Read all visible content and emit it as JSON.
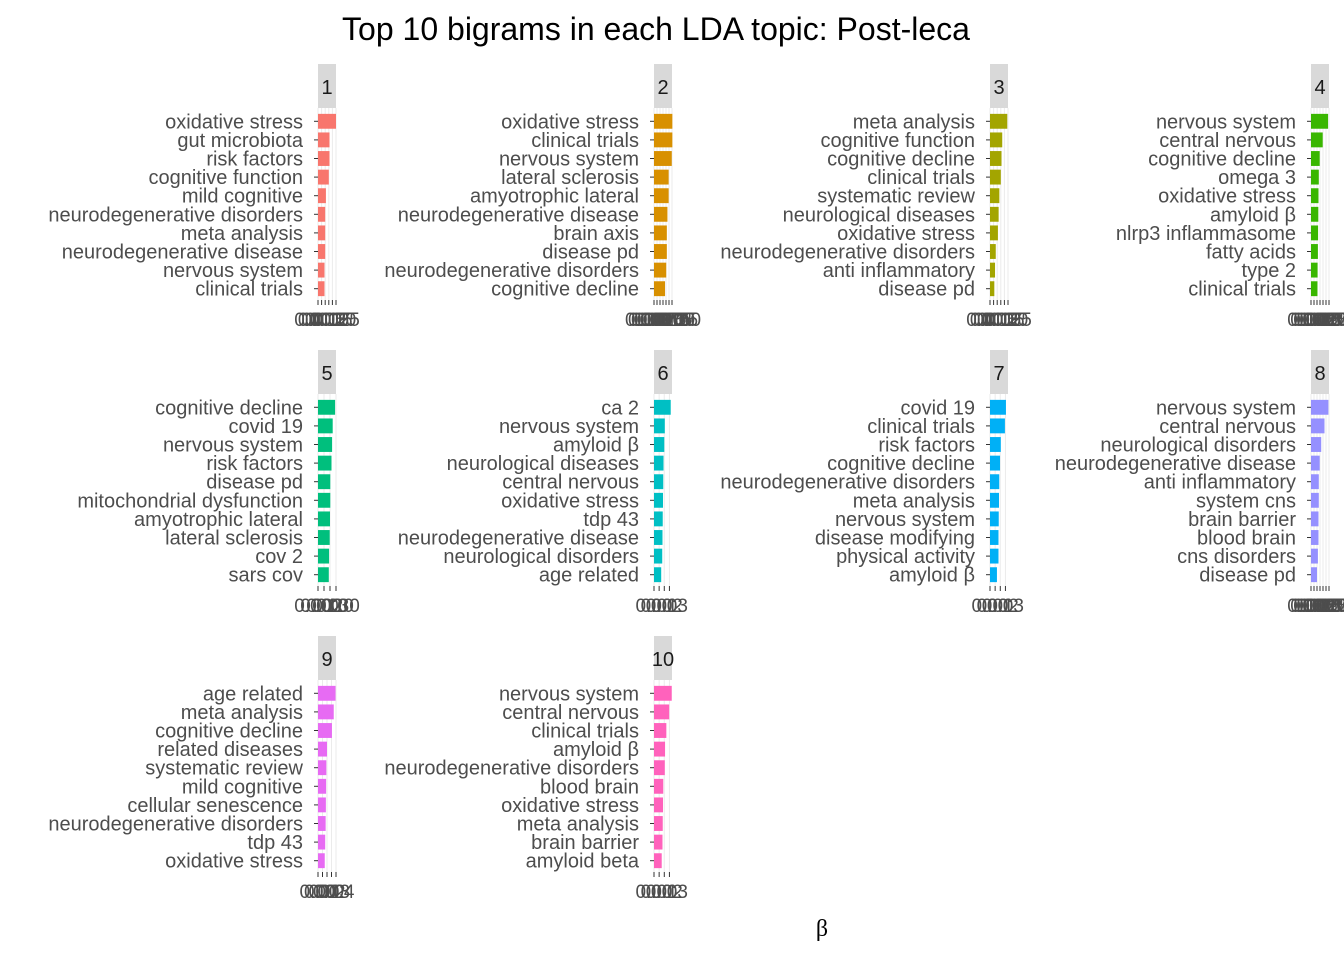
{
  "chart_data": {
    "type": "bar",
    "orientation": "horizontal",
    "title": "Top 10 bigrams in each LDA topic: Post-leca",
    "xlabel": "β",
    "ylabel": "",
    "grid": true,
    "legend": "none",
    "facets": [
      {
        "topic": "1",
        "color": "#F8766D",
        "categories": [
          "oxidative stress",
          "gut microbiota",
          "risk factors",
          "cognitive function",
          "mild cognitive",
          "neurodegenerative disorders",
          "meta analysis",
          "neurodegenerative disease",
          "nervous system",
          "clinical trials"
        ],
        "values": [
          0.025,
          0.016,
          0.016,
          0.015,
          0.011,
          0.01,
          0.01,
          0.01,
          0.009,
          0.009
        ],
        "xlim": [
          0,
          0.025
        ],
        "ticks": [
          0,
          0.005,
          0.01,
          0.015,
          0.02,
          0.025
        ],
        "tick_labels": [
          "0.000",
          "0.005",
          "0.010",
          "0.015",
          "0.020",
          "0.025"
        ]
      },
      {
        "topic": "2",
        "color": "#D89000",
        "categories": [
          "oxidative stress",
          "clinical trials",
          "nervous system",
          "lateral sclerosis",
          "amyotrophic lateral",
          "neurodegenerative disease",
          "brain axis",
          "disease pd",
          "neurodegenerative disorders",
          "cognitive decline"
        ],
        "values": [
          0.0153,
          0.0153,
          0.0148,
          0.0122,
          0.0122,
          0.0112,
          0.0107,
          0.0107,
          0.0102,
          0.0092
        ],
        "xlim": [
          0,
          0.015
        ],
        "ticks": [
          0,
          0.0025,
          0.005,
          0.0075,
          0.01,
          0.0125,
          0.015
        ],
        "tick_labels": [
          "0.0000",
          "0.0025",
          "0.0050",
          "0.0075",
          "0.0100",
          "0.0125",
          "0.0150"
        ]
      },
      {
        "topic": "3",
        "color": "#A3A500",
        "categories": [
          "meta analysis",
          "cognitive function",
          "cognitive decline",
          "clinical trials",
          "systematic review",
          "neurological diseases",
          "oxidative stress",
          "neurodegenerative disorders",
          "anti inflammatory",
          "disease pd"
        ],
        "values": [
          0.024,
          0.017,
          0.016,
          0.015,
          0.013,
          0.012,
          0.011,
          0.008,
          0.007,
          0.006
        ],
        "xlim": [
          0,
          0.025
        ],
        "ticks": [
          0,
          0.005,
          0.01,
          0.015,
          0.02,
          0.025
        ],
        "tick_labels": [
          "0.000",
          "0.005",
          "0.010",
          "0.015",
          "0.020",
          "0.025"
        ]
      },
      {
        "topic": "4",
        "color": "#39B600",
        "categories": [
          "nervous system",
          "central nervous",
          "cognitive decline",
          "omega 3",
          "oxidative stress",
          "amyloid β",
          "nlrp3 inflammasome",
          "fatty acids",
          "type 2",
          "clinical trials"
        ],
        "values": [
          0.0285,
          0.0195,
          0.0145,
          0.013,
          0.0125,
          0.0122,
          0.0118,
          0.0115,
          0.011,
          0.0108
        ],
        "xlim": [
          0,
          0.03
        ],
        "ticks": [
          0,
          0.005,
          0.01,
          0.015,
          0.02,
          0.025,
          0.03
        ],
        "tick_labels": [
          "0.000",
          "0.005",
          "0.010",
          "0.015",
          "0.020",
          "0.025",
          "0.030"
        ]
      },
      {
        "topic": "5",
        "color": "#00BF7D",
        "categories": [
          "cognitive decline",
          "covid 19",
          "nervous system",
          "risk factors",
          "disease pd",
          "mitochondrial dysfunction",
          "amyotrophic lateral",
          "lateral sclerosis",
          "cov 2",
          "sars cov"
        ],
        "values": [
          0.0285,
          0.0245,
          0.0235,
          0.0225,
          0.0205,
          0.0205,
          0.02,
          0.0195,
          0.0185,
          0.018
        ],
        "xlim": [
          0,
          0.03
        ],
        "ticks": [
          0,
          0.01,
          0.02,
          0.03
        ],
        "tick_labels": [
          "0.000",
          "0.010",
          "0.020",
          "0.030"
        ]
      },
      {
        "topic": "6",
        "color": "#00BFC4",
        "categories": [
          "ca 2",
          "nervous system",
          "amyloid β",
          "neurological diseases",
          "central nervous",
          "oxidative stress",
          "tdp 43",
          "neurodegenerative disease",
          "neurological disorders",
          "age related"
        ],
        "values": [
          0.0325,
          0.021,
          0.02,
          0.0185,
          0.018,
          0.0175,
          0.017,
          0.0165,
          0.016,
          0.014
        ],
        "xlim": [
          0,
          0.035
        ],
        "ticks": [
          0,
          0.01,
          0.02,
          0.03
        ],
        "tick_labels": [
          "0.00",
          "0.01",
          "0.02",
          "0.03"
        ]
      },
      {
        "topic": "7",
        "color": "#00B0F6",
        "categories": [
          "covid 19",
          "clinical trials",
          "risk factors",
          "cognitive decline",
          "neurodegenerative disorders",
          "meta analysis",
          "nervous system",
          "disease modifying",
          "physical activity",
          "amyloid β"
        ],
        "values": [
          0.031,
          0.029,
          0.021,
          0.0195,
          0.018,
          0.0175,
          0.017,
          0.0165,
          0.0165,
          0.0135
        ],
        "xlim": [
          0,
          0.035
        ],
        "ticks": [
          0,
          0.01,
          0.02,
          0.03
        ],
        "tick_labels": [
          "0.00",
          "0.01",
          "0.02",
          "0.03"
        ]
      },
      {
        "topic": "8",
        "color": "#9590FF",
        "categories": [
          "nervous system",
          "central nervous",
          "neurological disorders",
          "neurodegenerative disease",
          "anti inflammatory",
          "system cns",
          "brain barrier",
          "blood brain",
          "cns disorders",
          "disease pd"
        ],
        "values": [
          0.029,
          0.0225,
          0.017,
          0.0145,
          0.013,
          0.013,
          0.0125,
          0.0125,
          0.0115,
          0.01
        ],
        "xlim": [
          0,
          0.03
        ],
        "ticks": [
          0,
          0.005,
          0.01,
          0.015,
          0.02,
          0.025,
          0.03
        ],
        "tick_labels": [
          "0.000",
          "0.005",
          "0.010",
          "0.015",
          "0.020",
          "0.025",
          "0.030"
        ]
      },
      {
        "topic": "9",
        "color": "#E76BF3",
        "categories": [
          "age related",
          "meta analysis",
          "cognitive decline",
          "related diseases",
          "systematic review",
          "mild cognitive",
          "cellular senescence",
          "neurodegenerative disorders",
          "tdp 43",
          "oxidative stress"
        ],
        "values": [
          0.039,
          0.035,
          0.031,
          0.02,
          0.0185,
          0.018,
          0.0175,
          0.017,
          0.016,
          0.015
        ],
        "xlim": [
          0,
          0.04
        ],
        "ticks": [
          0,
          0.01,
          0.02,
          0.03,
          0.04
        ],
        "tick_labels": [
          "0.00",
          "0.01",
          "0.02",
          "0.03",
          "0.04"
        ]
      },
      {
        "topic": "10",
        "color": "#FF62BC",
        "categories": [
          "nervous system",
          "central nervous",
          "clinical trials",
          "amyloid β",
          "neurodegenerative disorders",
          "blood brain",
          "oxidative stress",
          "meta analysis",
          "brain barrier",
          "amyloid beta"
        ],
        "values": [
          0.0345,
          0.0295,
          0.024,
          0.0215,
          0.021,
          0.018,
          0.0175,
          0.017,
          0.0165,
          0.015
        ],
        "xlim": [
          0,
          0.035
        ],
        "ticks": [
          0,
          0.01,
          0.02,
          0.03
        ],
        "tick_labels": [
          "0.00",
          "0.01",
          "0.02",
          "0.03"
        ]
      }
    ]
  }
}
